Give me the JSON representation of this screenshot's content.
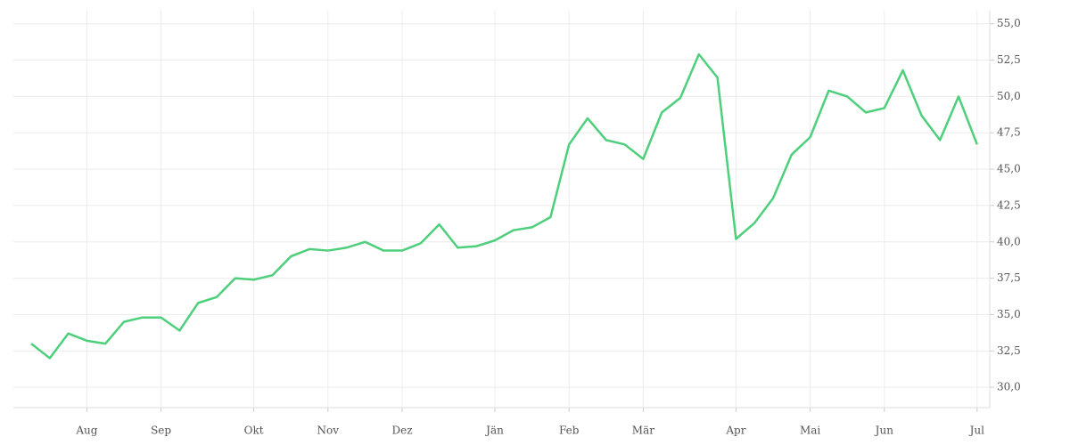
{
  "chart_data": {
    "type": "line",
    "categories": [
      null,
      null,
      null,
      "Aug",
      null,
      null,
      null,
      "Sep",
      null,
      null,
      null,
      null,
      "Okt",
      null,
      null,
      null,
      "Nov",
      null,
      null,
      null,
      "Dez",
      null,
      null,
      null,
      null,
      "Jän",
      null,
      null,
      null,
      "Feb",
      null,
      null,
      null,
      "Mär",
      null,
      null,
      null,
      null,
      "Apr",
      null,
      null,
      null,
      "Mai",
      null,
      null,
      null,
      "Jun",
      null,
      null,
      null,
      null,
      "Jul"
    ],
    "series": [
      {
        "color": "#4ecf7b",
        "values": [
          33.0,
          32.0,
          33.7,
          33.2,
          33.0,
          34.5,
          34.8,
          34.8,
          33.9,
          35.8,
          36.2,
          37.5,
          37.4,
          37.7,
          39.0,
          39.5,
          39.4,
          39.6,
          40.0,
          39.4,
          39.4,
          39.9,
          41.2,
          39.6,
          39.7,
          40.1,
          40.8,
          41.0,
          41.7,
          46.7,
          48.5,
          47.0,
          46.7,
          45.7,
          48.9,
          49.9,
          52.9,
          51.3,
          40.2,
          41.3,
          43.0,
          46.0,
          47.2,
          50.4,
          50.0,
          48.9,
          49.2,
          51.8,
          48.7,
          47.0,
          50.0,
          46.7
        ]
      }
    ],
    "ylim": [
      28.6,
      55.9
    ],
    "yticks": [
      {
        "value": 30,
        "label": "30,0"
      },
      {
        "value": 32.5,
        "label": "32,5"
      },
      {
        "value": 35,
        "label": "35,0"
      },
      {
        "value": 37.5,
        "label": "37,5"
      },
      {
        "value": 40,
        "label": "40,0"
      },
      {
        "value": 42.5,
        "label": "42,5"
      },
      {
        "value": 45,
        "label": "45,0"
      },
      {
        "value": 47.5,
        "label": "47,5"
      },
      {
        "value": 50,
        "label": "50,0"
      },
      {
        "value": 52.5,
        "label": "52,5"
      },
      {
        "value": 55,
        "label": "55,0"
      }
    ],
    "grid": true,
    "y_axis_side": "right"
  }
}
